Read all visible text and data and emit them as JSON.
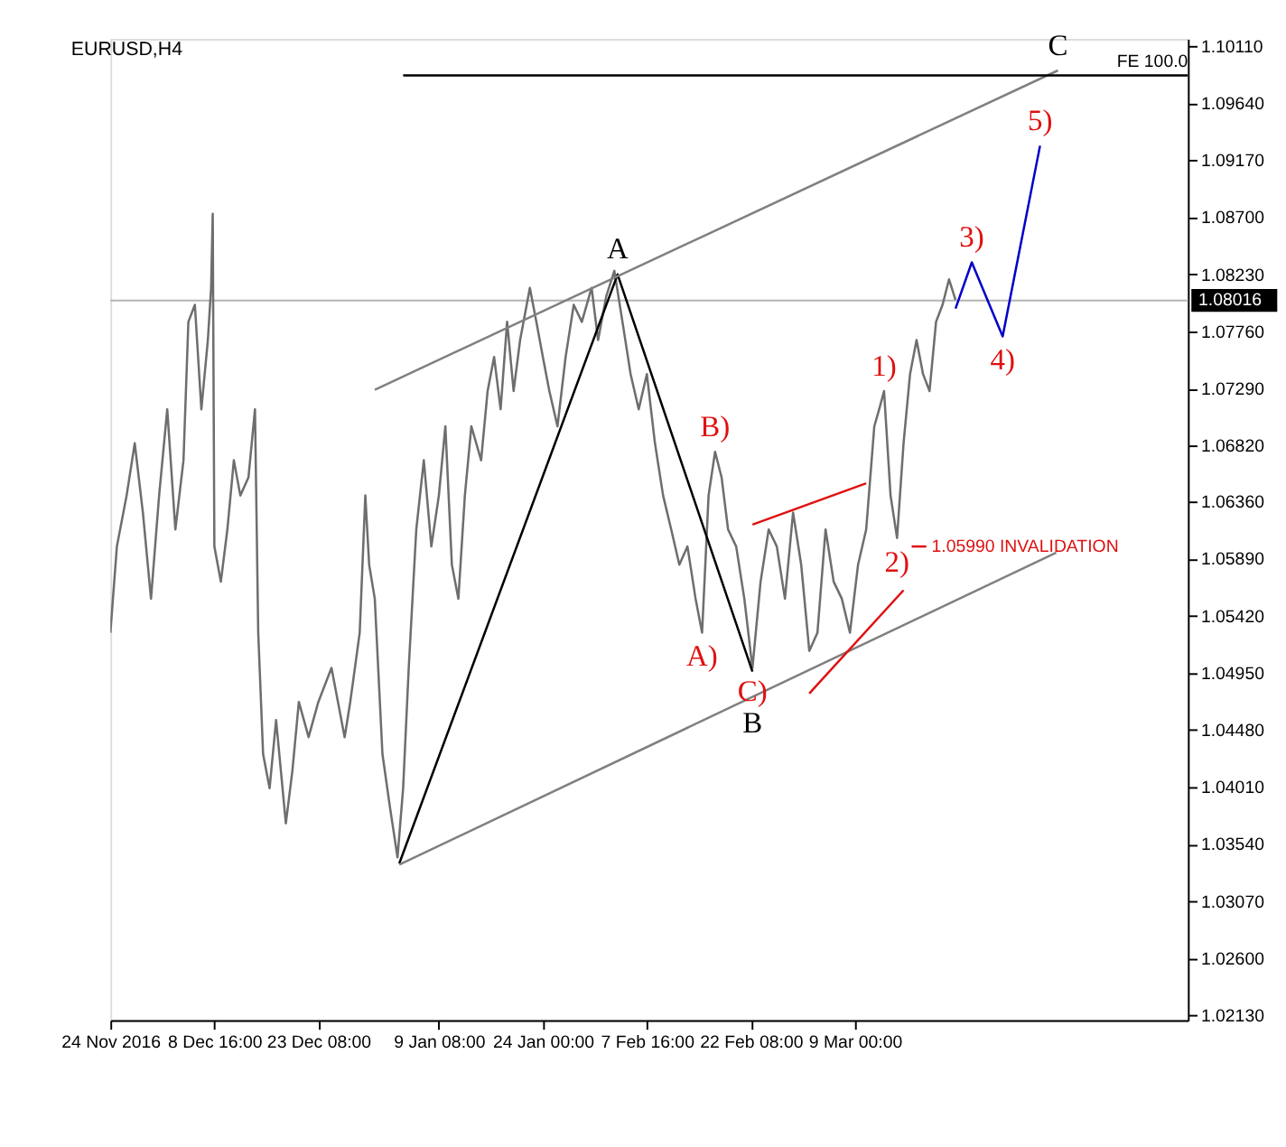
{
  "chart_data": {
    "type": "line",
    "title": "EURUSD,H4",
    "xlim": [
      "2016-11-24T00:00",
      "2017-04-24T23:30"
    ],
    "ylim": [
      1.0209,
      1.1017
    ],
    "xticks": [
      {
        "value": "2016-11-24T00:00",
        "label": "24 Nov 2016"
      },
      {
        "value": "2016-12-08T16:00",
        "label": "8 Dec 16:00"
      },
      {
        "value": "2016-12-23T08:00",
        "label": "23 Dec 08:00"
      },
      {
        "value": "2017-01-09T08:00",
        "label": "9 Jan 08:00"
      },
      {
        "value": "2017-01-24T00:00",
        "label": "24 Jan 00:00"
      },
      {
        "value": "2017-02-07T16:00",
        "label": "7 Feb 16:00"
      },
      {
        "value": "2017-02-22T08:00",
        "label": "22 Feb 08:00"
      },
      {
        "value": "2017-03-09T00:00",
        "label": "9 Mar 00:00"
      }
    ],
    "yticks": [
      {
        "value": 1.1011,
        "label": "1.10110"
      },
      {
        "value": 1.0964,
        "label": "1.09640"
      },
      {
        "value": 1.0917,
        "label": "1.09170"
      },
      {
        "value": 1.087,
        "label": "1.08700"
      },
      {
        "value": 1.0823,
        "label": "1.08230"
      },
      {
        "value": 1.0776,
        "label": "1.07760"
      },
      {
        "value": 1.0729,
        "label": "1.07290"
      },
      {
        "value": 1.0682,
        "label": "1.06820"
      },
      {
        "value": 1.0636,
        "label": "1.06360"
      },
      {
        "value": 1.0589,
        "label": "1.05890"
      },
      {
        "value": 1.0542,
        "label": "1.05420"
      },
      {
        "value": 1.0495,
        "label": "1.04950"
      },
      {
        "value": 1.0448,
        "label": "1.04480"
      },
      {
        "value": 1.0401,
        "label": "1.04010"
      },
      {
        "value": 1.0354,
        "label": "1.03540"
      },
      {
        "value": 1.0307,
        "label": "1.03070"
      },
      {
        "value": 1.026,
        "label": "1.02600"
      },
      {
        "value": 1.0213,
        "label": "1.02130"
      }
    ],
    "grid": false,
    "marker": "none",
    "series": [
      {
        "color": "#6e6e6e",
        "x": [
          "2016-11-24T00:00",
          "2016-11-24T22:00",
          "2016-11-26T07:00",
          "2016-11-27T10:30",
          "2016-11-28T14:00",
          "2016-11-29T17:30",
          "2016-11-30T21:00",
          "2016-12-02T00:30",
          "2016-12-03T04:00",
          "2016-12-04T07:30",
          "2016-12-05T00:00",
          "2016-12-05T22:00",
          "2016-12-06T20:00",
          "2016-12-07T18:00",
          "2016-12-08T05:00",
          "2016-12-08T10:30",
          "2016-12-08T16:00",
          "2016-12-09T14:00",
          "2016-12-10T12:00",
          "2016-12-11T10:00",
          "2016-12-12T08:00",
          "2016-12-13T11:30",
          "2016-12-14T09:30",
          "2016-12-14T20:30",
          "2016-12-15T13:00",
          "2016-12-16T11:00",
          "2016-12-17T09:00",
          "2016-12-18T18:00",
          "2016-12-19T16:00",
          "2016-12-20T14:00",
          "2016-12-21T23:00",
          "2016-12-23T08:00",
          "2016-12-25T04:30",
          "2016-12-27T01:00",
          "2016-12-27T20:00",
          "2016-12-29T04:00",
          "2016-12-29T23:00",
          "2016-12-30T12:00",
          "2016-12-31T07:00",
          "2017-01-01T09:00",
          "2017-01-02T10:00",
          "2017-01-03T12:00",
          "2017-01-04T07:00",
          "2017-01-05T02:00",
          "2017-01-06T03:30",
          "2017-01-07T05:00",
          "2017-01-08T06:30",
          "2017-01-09T08:00",
          "2017-01-10T06:00",
          "2017-01-11T04:00",
          "2017-01-12T02:00",
          "2017-01-13T00:00",
          "2017-01-13T22:00",
          "2017-01-15T07:00",
          "2017-01-16T05:00",
          "2017-01-17T03:00",
          "2017-01-18T01:00",
          "2017-01-18T23:00",
          "2017-01-19T21:00",
          "2017-01-20T19:00",
          "2017-01-22T04:00",
          "2017-01-23T02:00",
          "2017-01-24T00:00",
          "2017-01-24T22:00",
          "2017-01-26T01:30",
          "2017-01-27T05:00",
          "2017-01-28T08:30",
          "2017-01-29T12:00",
          "2017-01-30T21:00",
          "2017-01-31T19:00",
          "2017-02-01T22:30",
          "2017-02-03T02:00",
          "2017-02-04T05:30",
          "2017-02-05T09:00",
          "2017-02-06T12:30",
          "2017-02-07T16:00",
          "2017-02-08T19:30",
          "2017-02-09T23:00",
          "2017-02-11T02:30",
          "2017-02-12T06:00",
          "2017-02-13T09:30",
          "2017-02-14T13:00",
          "2017-02-15T11:00",
          "2017-02-16T09:00",
          "2017-02-17T07:00",
          "2017-02-18T05:00",
          "2017-02-19T03:00",
          "2017-02-20T06:30",
          "2017-02-21T10:00",
          "2017-02-22T13:30",
          "2017-02-23T17:00",
          "2017-02-24T20:30",
          "2017-02-26T00:00",
          "2017-02-27T03:30",
          "2017-02-28T07:00",
          "2017-03-01T10:30",
          "2017-03-02T14:00",
          "2017-03-03T17:30",
          "2017-03-04T21:00",
          "2017-03-06T00:30",
          "2017-03-07T04:00",
          "2017-03-08T07:30",
          "2017-03-09T11:00",
          "2017-03-10T14:30",
          "2017-03-11T18:00",
          "2017-03-12T10:30",
          "2017-03-13T03:00",
          "2017-03-14T01:00",
          "2017-03-14T23:00",
          "2017-03-15T21:00",
          "2017-03-16T19:00",
          "2017-03-17T17:00",
          "2017-03-18T15:00",
          "2017-03-19T13:00",
          "2017-03-20T11:00",
          "2017-03-21T09:00",
          "2017-03-22T07:00",
          "2017-03-23T05:00"
        ],
        "values": [
          1.0528,
          1.0599,
          1.0641,
          1.0684,
          1.0627,
          1.0556,
          1.0641,
          1.0712,
          1.0613,
          1.067,
          1.0784,
          1.0798,
          1.0712,
          1.0769,
          1.0812,
          1.0873,
          1.0599,
          1.057,
          1.0613,
          1.067,
          1.0641,
          1.0656,
          1.0712,
          1.0528,
          1.0428,
          1.04,
          1.0456,
          1.0371,
          1.0414,
          1.0471,
          1.0442,
          1.0471,
          1.0499,
          1.0442,
          1.0471,
          1.0528,
          1.0641,
          1.0584,
          1.0556,
          1.0428,
          1.0385,
          1.0343,
          1.04,
          1.0499,
          1.0613,
          1.067,
          1.0599,
          1.0641,
          1.0698,
          1.0584,
          1.0556,
          1.0641,
          1.0698,
          1.067,
          1.0727,
          1.0755,
          1.0712,
          1.0784,
          1.0727,
          1.0769,
          1.0812,
          1.0784,
          1.0755,
          1.0727,
          1.0698,
          1.0755,
          1.0798,
          1.0784,
          1.0812,
          1.0769,
          1.0805,
          1.0826,
          1.0784,
          1.0741,
          1.0712,
          1.0741,
          1.0684,
          1.0641,
          1.0613,
          1.0584,
          1.0599,
          1.0556,
          1.0528,
          1.0641,
          1.0677,
          1.0656,
          1.0613,
          1.0599,
          1.0556,
          1.0499,
          1.057,
          1.0613,
          1.0599,
          1.0556,
          1.0627,
          1.0584,
          1.0513,
          1.0528,
          1.0613,
          1.057,
          1.0556,
          1.0528,
          1.0584,
          1.0613,
          1.0698,
          1.0712,
          1.0727,
          1.0641,
          1.0606,
          1.0684,
          1.0741,
          1.0769,
          1.0741,
          1.0727,
          1.0784,
          1.0798,
          1.0819,
          1.0802
        ]
      },
      {
        "color": "#000000",
        "x": [
          "2017-01-03T18:00",
          "2017-02-03T13:00",
          "2017-02-22T13:30"
        ],
        "values": [
          1.0338,
          1.0823,
          1.0496
        ],
        "value_labels": [
          null,
          "A",
          "B"
        ]
      },
      {
        "color": "#808080",
        "x": [
          "2016-12-31T07:00",
          "2017-04-06T15:30"
        ],
        "values": [
          1.0728,
          1.0991
        ],
        "value_labels": [
          null,
          "C"
        ]
      },
      {
        "color": "#808080",
        "x": [
          "2017-01-03T18:00",
          "2017-04-06T10:00"
        ],
        "values": [
          1.0337,
          1.0594
        ]
      },
      {
        "color": "#000000",
        "x": [
          "2017-01-04T07:00",
          "2017-04-24T23:30"
        ],
        "values": [
          1.0987,
          1.0987
        ],
        "value_labels": [
          null,
          "FE 100.0"
        ]
      },
      {
        "color": "#e01010",
        "x": [
          "2017-02-22T13:30",
          "2017-03-10T14:30"
        ],
        "values": [
          1.0617,
          1.0651
        ]
      },
      {
        "color": "#e01010",
        "x": [
          "2017-03-02T14:00",
          "2017-03-15T21:00"
        ],
        "values": [
          1.0478,
          1.0563
        ]
      },
      {
        "color": "#e01010",
        "x": [
          "2017-03-17T00:30",
          "2017-03-19T02:00"
        ],
        "values": [
          1.0599,
          1.0599
        ]
      },
      {
        "color": "#0000c8",
        "x": [
          "2017-03-23T05:00",
          "2017-03-25T12:00",
          "2017-03-29T20:30",
          "2017-04-04T03:00"
        ],
        "values": [
          1.0795,
          1.0833,
          1.0772,
          1.0929
        ]
      }
    ],
    "ref_lines": [
      {
        "axis": "y",
        "value": 1.08016,
        "label": "1.08016",
        "color": "#b4b4b4"
      }
    ],
    "annotations": [
      {
        "text": "A)",
        "x": "2017-02-15T11:00",
        "y": 1.0528
      },
      {
        "text": "B)",
        "x": "2017-02-17T07:00",
        "y": 1.0677
      },
      {
        "text": "C)",
        "x": "2017-02-22T13:30",
        "y": 1.0499
      },
      {
        "text": "1)",
        "x": "2017-03-13T03:00",
        "y": 1.0727
      },
      {
        "text": "2)",
        "x": "2017-03-14T23:00",
        "y": 1.0606
      },
      {
        "text": "3)",
        "x": "2017-03-25T12:00",
        "y": 1.0833
      },
      {
        "text": "4)",
        "x": "2017-03-29T20:30",
        "y": 1.0772
      },
      {
        "text": "5)",
        "x": "2017-04-04T03:00",
        "y": 1.0929
      },
      {
        "text": "1.05990 INVALIDATION",
        "x": "2017-03-19T02:00",
        "y": 1.0599
      }
    ]
  }
}
